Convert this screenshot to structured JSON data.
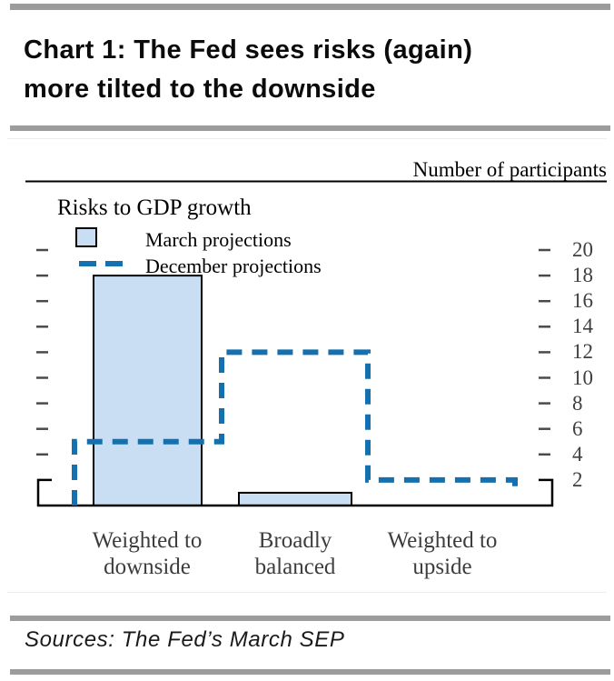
{
  "title": {
    "line1": "Chart 1: The Fed sees risks (again)",
    "line2": "more tilted to the downside"
  },
  "chart": {
    "subtitle": "Risks to GDP growth"
  },
  "chart_data": {
    "type": "bar",
    "categories": [
      "Weighted to\ndownside",
      "Broadly\nbalanced",
      "Weighted to\nupside"
    ],
    "series": [
      {
        "name": "March projections",
        "type": "bar",
        "values": [
          18,
          1,
          0
        ]
      },
      {
        "name": "December projections",
        "type": "step-line",
        "values": [
          5,
          12,
          2
        ]
      }
    ],
    "title": "",
    "xlabel": "",
    "ylabel": "Number of participants",
    "yticks": [
      2,
      4,
      6,
      8,
      10,
      12,
      14,
      16,
      18,
      20
    ],
    "ylim": [
      0,
      21
    ],
    "grid": false,
    "legend_position": "top-left"
  },
  "colors": {
    "bar_fill": "#c9def2",
    "bar_border": "#000000",
    "line_blue": "#1470ae",
    "rule_gray": "#9c9c9c",
    "tick_gray": "#4a4a4a",
    "axis_black": "#000000",
    "ylabel_text": "#3f3f3f"
  },
  "sources": {
    "text": "Sources: The Fed’s March SEP"
  }
}
